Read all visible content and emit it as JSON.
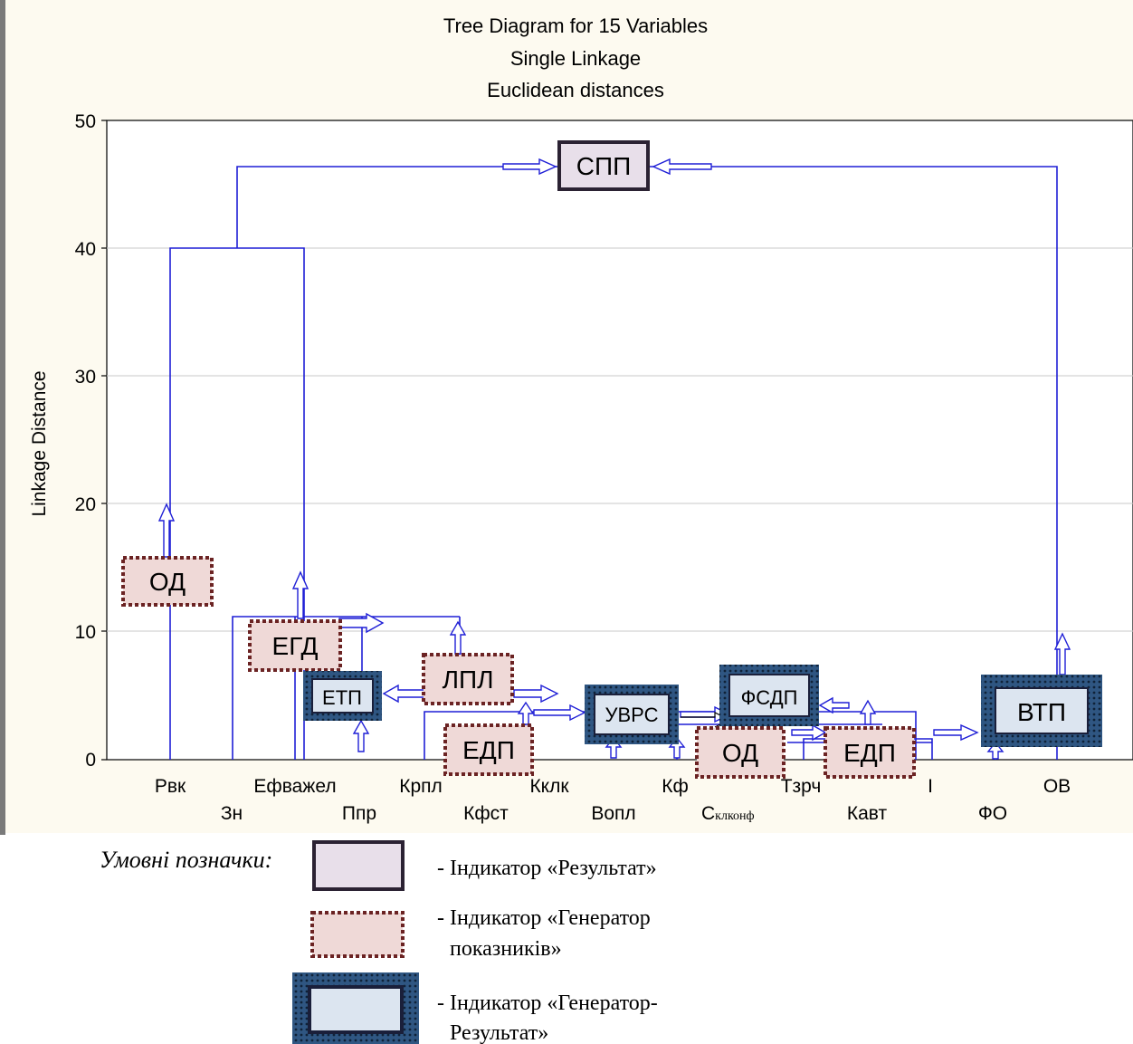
{
  "chart": {
    "title_lines": [
      "Tree Diagram for 15  Variables",
      "Single Linkage",
      "Euclidean distances"
    ],
    "y_label": "Linkage Distance",
    "y_ticks": [
      "0",
      "10",
      "20",
      "30",
      "40",
      "50"
    ],
    "variables_top": [
      "Рвк",
      "Ефважел",
      "Крпл",
      "Кклк",
      "Кф",
      "Тзрч",
      "І",
      "ОВ"
    ],
    "variables_bottom": [
      "Зн",
      "Ппр",
      "Кфст",
      "Вопл",
      "С",
      "Кавт",
      "ФО"
    ],
    "var_c_subscript": "клконф"
  },
  "boxes": {
    "spp": "СПП",
    "od1": "ОД",
    "egd": "ЕГД",
    "etp": "ЕТП",
    "lpl": "ЛПЛ",
    "edp1": "ЕДП",
    "uvrs": "УВРС",
    "fsdp": "ФСДП",
    "od2": "ОД",
    "edp2": "ЕДП",
    "vtp": "ВТП"
  },
  "legend": {
    "title": "Умовні позначки:",
    "result_label": "- Індикатор «Результат»",
    "generator_line1": "- Індикатор «Генератор",
    "generator_line2": "показників»",
    "genres_line1": "- Індикатор «Генератор-",
    "genres_line2": "Результат»"
  },
  "colors": {
    "background": "#fdfaf0",
    "tree_line": "#1f1fd6",
    "result_fill": "#e8dfea",
    "generator_fill": "#efd9d7",
    "generator_border": "#6b2323",
    "genres_outer": "#2f5682",
    "genres_fill": "#dce5f0"
  }
}
